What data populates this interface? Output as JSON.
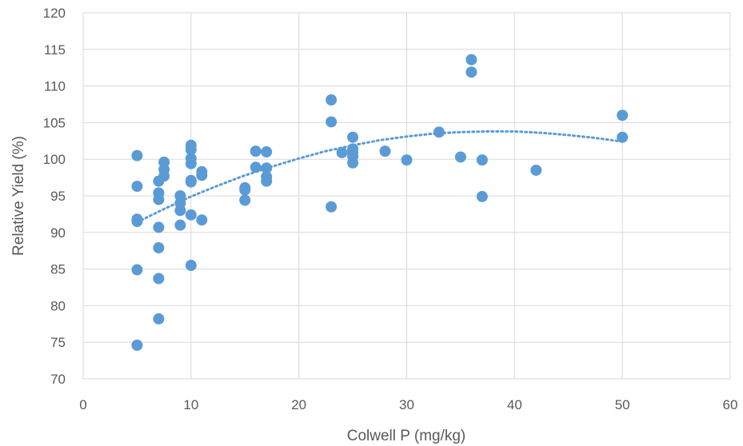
{
  "chart_data": {
    "type": "scatter",
    "title": "",
    "xlabel": "Colwell P (mg/kg)",
    "ylabel": "Relative Yield (%)",
    "xlim": [
      0,
      60
    ],
    "ylim": [
      70,
      120
    ],
    "xticks": [
      0,
      10,
      20,
      30,
      40,
      50,
      60
    ],
    "yticks": [
      70,
      75,
      80,
      85,
      90,
      95,
      100,
      105,
      110,
      115,
      120
    ],
    "grid": true,
    "legend": "none",
    "marker_color": "#5b9bd5",
    "trendline": {
      "type": "polynomial-2",
      "style": "dotted",
      "color": "#5b9bd5",
      "points": [
        [
          5,
          91.4
        ],
        [
          7.5,
          93.2
        ],
        [
          10,
          94.9
        ],
        [
          12.5,
          96.4
        ],
        [
          15,
          97.8
        ],
        [
          17.5,
          99.0
        ],
        [
          20,
          100.1
        ],
        [
          22.5,
          101.1
        ],
        [
          25,
          101.9
        ],
        [
          27.5,
          102.6
        ],
        [
          30,
          103.1
        ],
        [
          32.5,
          103.5
        ],
        [
          35,
          103.7
        ],
        [
          37.5,
          103.8
        ],
        [
          40,
          103.8
        ],
        [
          42.5,
          103.6
        ],
        [
          45,
          103.3
        ],
        [
          47.5,
          102.9
        ],
        [
          50,
          102.4
        ]
      ]
    },
    "points": [
      [
        5,
        100.5
      ],
      [
        5,
        96.3
      ],
      [
        5,
        91.8
      ],
      [
        5,
        91.5
      ],
      [
        5,
        84.9
      ],
      [
        5,
        74.6
      ],
      [
        7,
        97.0
      ],
      [
        7,
        95.4
      ],
      [
        7,
        94.5
      ],
      [
        7,
        90.7
      ],
      [
        7,
        87.9
      ],
      [
        7,
        83.7
      ],
      [
        7,
        78.2
      ],
      [
        7.5,
        99.6
      ],
      [
        7.5,
        98.6
      ],
      [
        7.5,
        97.7
      ],
      [
        9,
        95.0
      ],
      [
        9,
        94.0
      ],
      [
        9,
        93.0
      ],
      [
        9,
        91.0
      ],
      [
        10,
        101.9
      ],
      [
        10,
        101.3
      ],
      [
        10,
        100.1
      ],
      [
        10,
        99.4
      ],
      [
        10,
        97.1
      ],
      [
        10,
        96.9
      ],
      [
        10,
        92.4
      ],
      [
        10,
        85.5
      ],
      [
        11,
        98.3
      ],
      [
        11,
        97.8
      ],
      [
        11,
        91.7
      ],
      [
        15,
        96.1
      ],
      [
        15,
        95.8
      ],
      [
        15,
        94.4
      ],
      [
        16,
        101.1
      ],
      [
        16,
        98.9
      ],
      [
        17,
        101.0
      ],
      [
        17,
        98.8
      ],
      [
        17,
        97.6
      ],
      [
        17,
        97.0
      ],
      [
        23,
        108.1
      ],
      [
        23,
        105.1
      ],
      [
        23,
        93.5
      ],
      [
        24,
        100.9
      ],
      [
        25,
        103.0
      ],
      [
        25,
        101.4
      ],
      [
        25,
        100.9
      ],
      [
        25,
        100.4
      ],
      [
        25,
        99.5
      ],
      [
        28,
        101.1
      ],
      [
        30,
        99.9
      ],
      [
        33,
        103.7
      ],
      [
        35,
        100.3
      ],
      [
        36,
        113.6
      ],
      [
        36,
        111.9
      ],
      [
        37,
        99.9
      ],
      [
        37,
        94.9
      ],
      [
        42,
        98.5
      ],
      [
        50,
        106.0
      ],
      [
        50,
        103.0
      ]
    ]
  }
}
